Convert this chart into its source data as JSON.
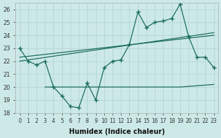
{
  "xlabel": "Humidex (Indice chaleur)",
  "ylabel": "",
  "background_color": "#cce9e8",
  "grid_color": "#b8d8d7",
  "line_color": "#1a6b5a",
  "xlim": [
    -0.5,
    23.5
  ],
  "ylim": [
    18,
    26.5
  ],
  "yticks": [
    18,
    19,
    20,
    21,
    22,
    23,
    24,
    25,
    26
  ],
  "xticks": [
    0,
    1,
    2,
    3,
    4,
    5,
    6,
    7,
    8,
    9,
    10,
    11,
    12,
    13,
    14,
    15,
    16,
    17,
    18,
    19,
    20,
    21,
    22,
    23
  ],
  "main_series_x": [
    0,
    1,
    2,
    3,
    4,
    5,
    6,
    7,
    8,
    9,
    10,
    11,
    12,
    13,
    14,
    15,
    16,
    17,
    18,
    19,
    20,
    21,
    22,
    23
  ],
  "main_series_y": [
    23,
    22,
    21.7,
    22,
    20,
    19.3,
    18.5,
    18.4,
    20.3,
    19.0,
    21.5,
    22,
    22.1,
    23.3,
    25.8,
    24.6,
    25.0,
    25.1,
    25.3,
    26.4,
    23.9,
    22.3,
    22.3,
    21.5
  ],
  "flat_line_x": [
    3,
    19,
    23
  ],
  "flat_line_y": [
    20,
    20,
    20.2
  ],
  "reg_line1_x": [
    0,
    23
  ],
  "reg_line1_y": [
    22.0,
    24.2
  ],
  "reg_line2_x": [
    0,
    23
  ],
  "reg_line2_y": [
    22.3,
    24.0
  ]
}
